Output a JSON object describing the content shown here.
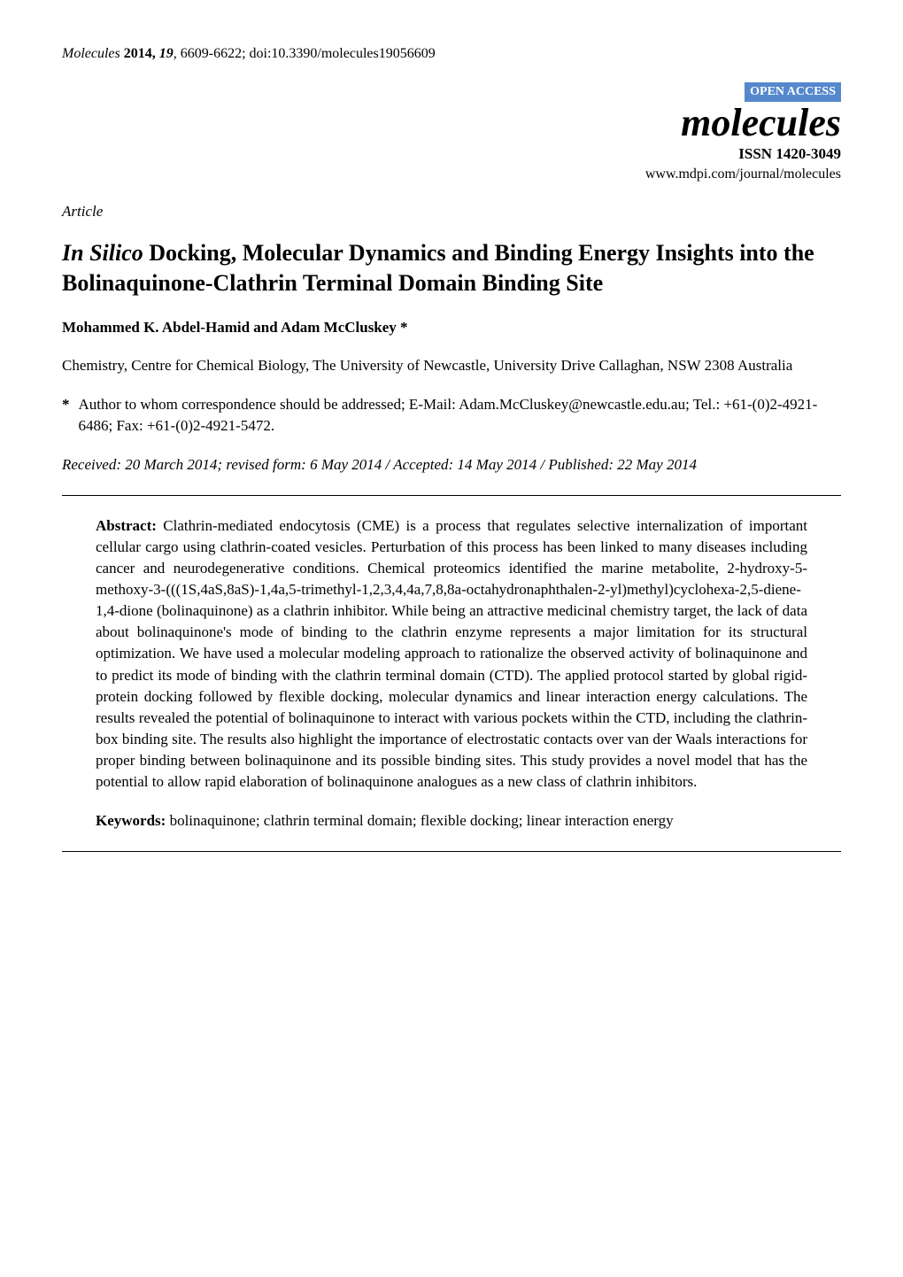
{
  "header": {
    "citation_prefix_italic": "Molecules",
    "citation_rest": " 2014, 19, 6609-6622; doi:10.3390/molecules19056609"
  },
  "journal_block": {
    "open_access": "OPEN ACCESS",
    "name": "molecules",
    "issn": "ISSN 1420-3049",
    "url": "www.mdpi.com/journal/molecules"
  },
  "article_type": "Article",
  "title": {
    "italic_part": "In Silico",
    "rest": " Docking, Molecular Dynamics and Binding Energy Insights into the Bolinaquinone-Clathrin Terminal Domain Binding Site"
  },
  "authors": "Mohammed K. Abdel-Hamid and Adam McCluskey *",
  "affiliation": "Chemistry, Centre for Chemical Biology, The University of Newcastle, University Drive Callaghan, NSW 2308 Australia",
  "correspondence": {
    "marker": "*",
    "text": "Author to whom correspondence should be addressed; E-Mail: Adam.McCluskey@newcastle.edu.au; Tel.: +61-(0)2-4921-6486; Fax: +61-(0)2-4921-5472."
  },
  "dates": "Received: 20 March 2014; revised form: 6 May 2014 / Accepted: 14 May 2014 / Published: 22 May 2014",
  "abstract": {
    "label": "Abstract:",
    "text": " Clathrin-mediated endocytosis (CME) is a process that regulates selective internalization of important cellular cargo using clathrin-coated vesicles. Perturbation of this process has been linked to many diseases including cancer and neurodegenerative conditions. Chemical proteomics identified the marine metabolite, 2-hydroxy-5-methoxy-3-(((1S,4aS,8aS)-1,4a,5-trimethyl-1,2,3,4,4a,7,8,8a-octahydronaphthalen-2-yl)methyl)cyclohexa-2,5-diene-1,4-dione (bolinaquinone) as a clathrin inhibitor. While being an attractive medicinal chemistry target, the lack of data about bolinaquinone's mode of binding to the clathrin enzyme represents a major limitation for its structural optimization. We have used a molecular modeling approach to rationalize the observed activity of bolinaquinone and to predict its mode of binding with the clathrin terminal domain (CTD). The applied protocol started by global rigid-protein docking followed by flexible docking, molecular dynamics and linear interaction energy calculations. The results revealed the potential of bolinaquinone to interact with various pockets within the CTD, including the clathrin-box binding site. The results also highlight the importance of electrostatic contacts over van der Waals interactions for proper binding between bolinaquinone and its possible binding sites. This study provides a novel model that has the potential to allow rapid elaboration of bolinaquinone analogues as a new class of clathrin inhibitors."
  },
  "keywords": {
    "label": "Keywords:",
    "text": " bolinaquinone; clathrin terminal domain; flexible docking; linear interaction energy"
  },
  "colors": {
    "open_access_bg": "#5588cc",
    "text": "#000000",
    "background": "#ffffff"
  }
}
